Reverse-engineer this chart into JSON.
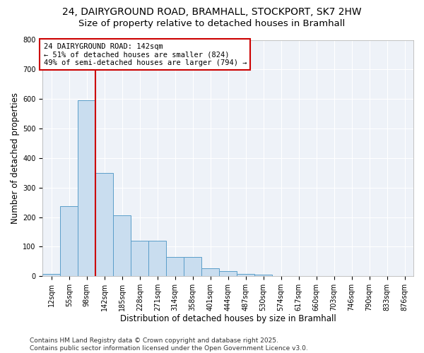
{
  "title_line1": "24, DAIRYGROUND ROAD, BRAMHALL, STOCKPORT, SK7 2HW",
  "title_line2": "Size of property relative to detached houses in Bramhall",
  "xlabel": "Distribution of detached houses by size in Bramhall",
  "ylabel": "Number of detached properties",
  "categories": [
    "12sqm",
    "55sqm",
    "98sqm",
    "142sqm",
    "185sqm",
    "228sqm",
    "271sqm",
    "314sqm",
    "358sqm",
    "401sqm",
    "444sqm",
    "487sqm",
    "530sqm",
    "574sqm",
    "617sqm",
    "660sqm",
    "703sqm",
    "746sqm",
    "790sqm",
    "833sqm",
    "876sqm"
  ],
  "values": [
    8,
    238,
    595,
    350,
    205,
    120,
    120,
    65,
    65,
    28,
    18,
    8,
    5,
    0,
    0,
    0,
    0,
    0,
    0,
    0,
    0
  ],
  "bar_color": "#c9ddef",
  "bar_edge_color": "#5b9ec9",
  "vline_color": "#cc0000",
  "annotation_text": "24 DAIRYGROUND ROAD: 142sqm\n← 51% of detached houses are smaller (824)\n49% of semi-detached houses are larger (794) →",
  "annotation_box_color": "white",
  "annotation_box_edge_color": "#cc0000",
  "ylim": [
    0,
    800
  ],
  "yticks": [
    0,
    100,
    200,
    300,
    400,
    500,
    600,
    700,
    800
  ],
  "background_color": "#eef2f8",
  "footer_text": "Contains HM Land Registry data © Crown copyright and database right 2025.\nContains public sector information licensed under the Open Government Licence v3.0.",
  "title_fontsize": 10,
  "subtitle_fontsize": 9.5,
  "axis_label_fontsize": 8.5,
  "tick_fontsize": 7,
  "annotation_fontsize": 7.5,
  "footer_fontsize": 6.5
}
